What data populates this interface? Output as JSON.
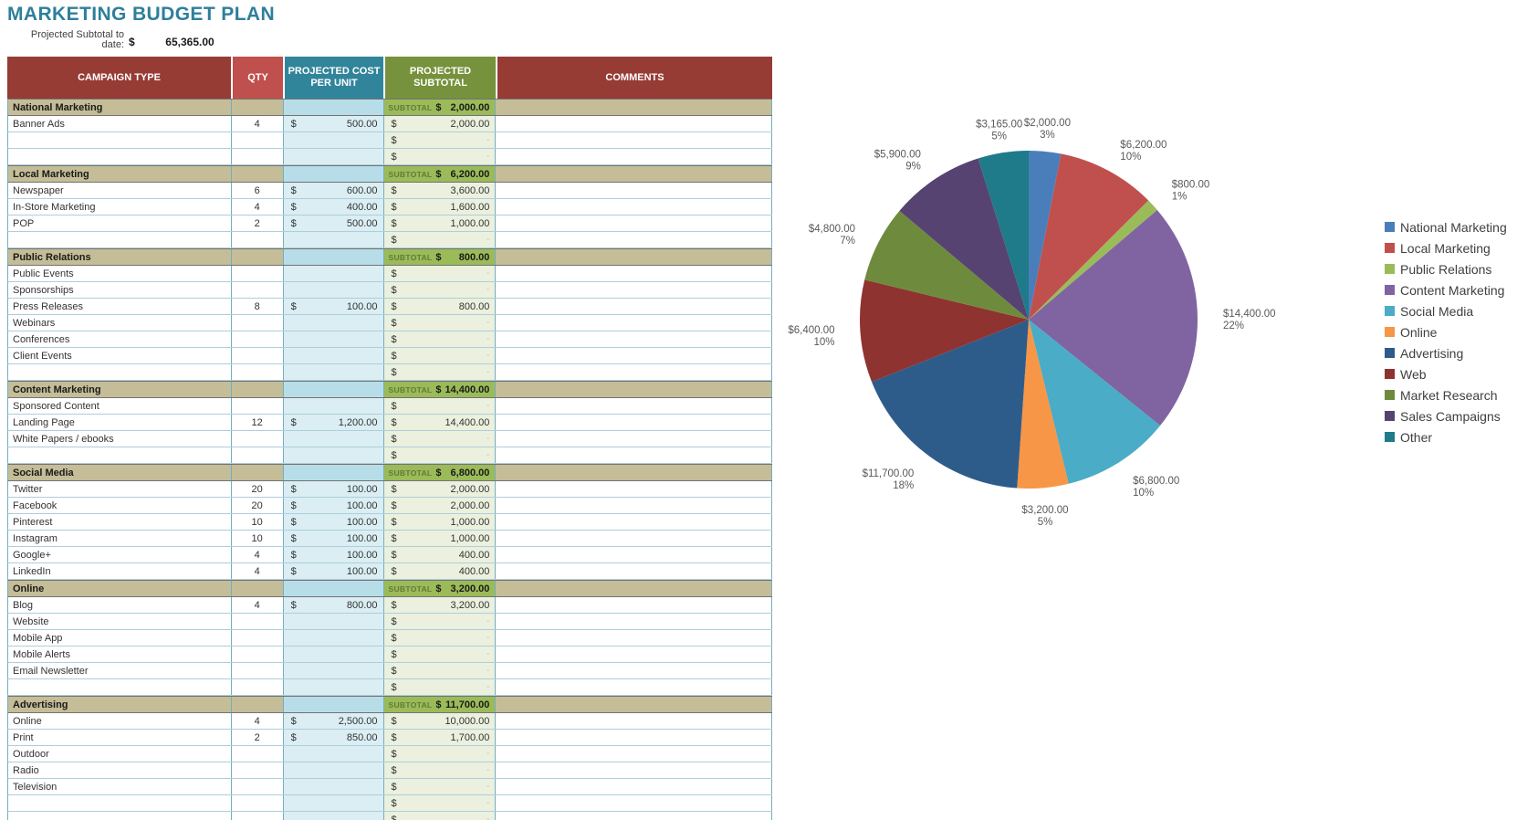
{
  "page": {
    "title": "MARKETING BUDGET PLAN"
  },
  "summary": {
    "label": "Projected Subtotal to date:",
    "currency": "$",
    "value": "65,365.00"
  },
  "table": {
    "headers": {
      "campaign": "CAMPAIGN TYPE",
      "qty": "QTY",
      "cost": "PROJECTED COST PER UNIT",
      "subtotal": "PROJECTED SUBTOTAL",
      "comments": "COMMENTS"
    },
    "subtotal_label": "SUBTOTAL",
    "currency": "$",
    "empty_marker": "-",
    "sections": [
      {
        "name": "National Marketing",
        "subtotal": "2,000.00",
        "rows": [
          {
            "campaign": "Banner Ads",
            "qty": "4",
            "cost": "500.00",
            "subtotal": "2,000.00"
          },
          {
            "campaign": "",
            "qty": "",
            "cost": "",
            "subtotal": ""
          },
          {
            "campaign": "",
            "qty": "",
            "cost": "",
            "subtotal": ""
          }
        ]
      },
      {
        "name": "Local Marketing",
        "subtotal": "6,200.00",
        "rows": [
          {
            "campaign": "Newspaper",
            "qty": "6",
            "cost": "600.00",
            "subtotal": "3,600.00"
          },
          {
            "campaign": "In-Store Marketing",
            "qty": "4",
            "cost": "400.00",
            "subtotal": "1,600.00"
          },
          {
            "campaign": "POP",
            "qty": "2",
            "cost": "500.00",
            "subtotal": "1,000.00"
          },
          {
            "campaign": "",
            "qty": "",
            "cost": "",
            "subtotal": ""
          }
        ]
      },
      {
        "name": "Public Relations",
        "subtotal": "800.00",
        "rows": [
          {
            "campaign": "Public Events",
            "qty": "",
            "cost": "",
            "subtotal": ""
          },
          {
            "campaign": "Sponsorships",
            "qty": "",
            "cost": "",
            "subtotal": ""
          },
          {
            "campaign": "Press Releases",
            "qty": "8",
            "cost": "100.00",
            "subtotal": "800.00"
          },
          {
            "campaign": "Webinars",
            "qty": "",
            "cost": "",
            "subtotal": ""
          },
          {
            "campaign": "Conferences",
            "qty": "",
            "cost": "",
            "subtotal": ""
          },
          {
            "campaign": "Client Events",
            "qty": "",
            "cost": "",
            "subtotal": ""
          },
          {
            "campaign": "",
            "qty": "",
            "cost": "",
            "subtotal": ""
          }
        ]
      },
      {
        "name": "Content Marketing",
        "subtotal": "14,400.00",
        "rows": [
          {
            "campaign": "Sponsored Content",
            "qty": "",
            "cost": "",
            "subtotal": ""
          },
          {
            "campaign": "Landing Page",
            "qty": "12",
            "cost": "1,200.00",
            "subtotal": "14,400.00"
          },
          {
            "campaign": "White Papers / ebooks",
            "qty": "",
            "cost": "",
            "subtotal": ""
          },
          {
            "campaign": "",
            "qty": "",
            "cost": "",
            "subtotal": ""
          }
        ]
      },
      {
        "name": "Social Media",
        "subtotal": "6,800.00",
        "rows": [
          {
            "campaign": "Twitter",
            "qty": "20",
            "cost": "100.00",
            "subtotal": "2,000.00"
          },
          {
            "campaign": "Facebook",
            "qty": "20",
            "cost": "100.00",
            "subtotal": "2,000.00"
          },
          {
            "campaign": "Pinterest",
            "qty": "10",
            "cost": "100.00",
            "subtotal": "1,000.00"
          },
          {
            "campaign": "Instagram",
            "qty": "10",
            "cost": "100.00",
            "subtotal": "1,000.00"
          },
          {
            "campaign": "Google+",
            "qty": "4",
            "cost": "100.00",
            "subtotal": "400.00"
          },
          {
            "campaign": "LinkedIn",
            "qty": "4",
            "cost": "100.00",
            "subtotal": "400.00"
          }
        ]
      },
      {
        "name": "Online",
        "subtotal": "3,200.00",
        "rows": [
          {
            "campaign": "Blog",
            "qty": "4",
            "cost": "800.00",
            "subtotal": "3,200.00"
          },
          {
            "campaign": "Website",
            "qty": "",
            "cost": "",
            "subtotal": ""
          },
          {
            "campaign": "Mobile App",
            "qty": "",
            "cost": "",
            "subtotal": ""
          },
          {
            "campaign": "Mobile Alerts",
            "qty": "",
            "cost": "",
            "subtotal": ""
          },
          {
            "campaign": "Email Newsletter",
            "qty": "",
            "cost": "",
            "subtotal": ""
          },
          {
            "campaign": "",
            "qty": "",
            "cost": "",
            "subtotal": ""
          }
        ]
      },
      {
        "name": "Advertising",
        "subtotal": "11,700.00",
        "rows": [
          {
            "campaign": "Online",
            "qty": "4",
            "cost": "2,500.00",
            "subtotal": "10,000.00"
          },
          {
            "campaign": "Print",
            "qty": "2",
            "cost": "850.00",
            "subtotal": "1,700.00"
          },
          {
            "campaign": "Outdoor",
            "qty": "",
            "cost": "",
            "subtotal": ""
          },
          {
            "campaign": "Radio",
            "qty": "",
            "cost": "",
            "subtotal": ""
          },
          {
            "campaign": "Television",
            "qty": "",
            "cost": "",
            "subtotal": ""
          },
          {
            "campaign": "",
            "qty": "",
            "cost": "",
            "subtotal": ""
          },
          {
            "campaign": "",
            "qty": "",
            "cost": "",
            "subtotal": ""
          }
        ]
      }
    ]
  },
  "chart_data": {
    "type": "pie",
    "legend_position": "right",
    "total": 65365,
    "series": [
      {
        "name": "National Marketing",
        "value": 2000,
        "label": "$2,000.00",
        "percent": "3%",
        "color": "#4A7EBB"
      },
      {
        "name": "Local Marketing",
        "value": 6200,
        "label": "$6,200.00",
        "percent": "10%",
        "color": "#C0504D"
      },
      {
        "name": "Public Relations",
        "value": 800,
        "label": "$800.00",
        "percent": "1%",
        "color": "#9BBB59"
      },
      {
        "name": "Content Marketing",
        "value": 14400,
        "label": "$14,400.00",
        "percent": "22%",
        "color": "#8064A2"
      },
      {
        "name": "Social Media",
        "value": 6800,
        "label": "$6,800.00",
        "percent": "10%",
        "color": "#4AACC6"
      },
      {
        "name": "Online",
        "value": 3200,
        "label": "$3,200.00",
        "percent": "5%",
        "color": "#F79646"
      },
      {
        "name": "Advertising",
        "value": 11700,
        "label": "$11,700.00",
        "percent": "18%",
        "color": "#2E5C8A"
      },
      {
        "name": "Web",
        "value": 6400,
        "label": "$6,400.00",
        "percent": "10%",
        "color": "#8E3330"
      },
      {
        "name": "Market Research",
        "value": 4800,
        "label": "$4,800.00",
        "percent": "7%",
        "color": "#6E8B3D"
      },
      {
        "name": "Sales Campaigns",
        "value": 5900,
        "label": "$5,900.00",
        "percent": "9%",
        "color": "#564372"
      },
      {
        "name": "Other",
        "value": 3165,
        "label": "$3,165.00",
        "percent": "5%",
        "color": "#1F7A8A"
      }
    ]
  }
}
